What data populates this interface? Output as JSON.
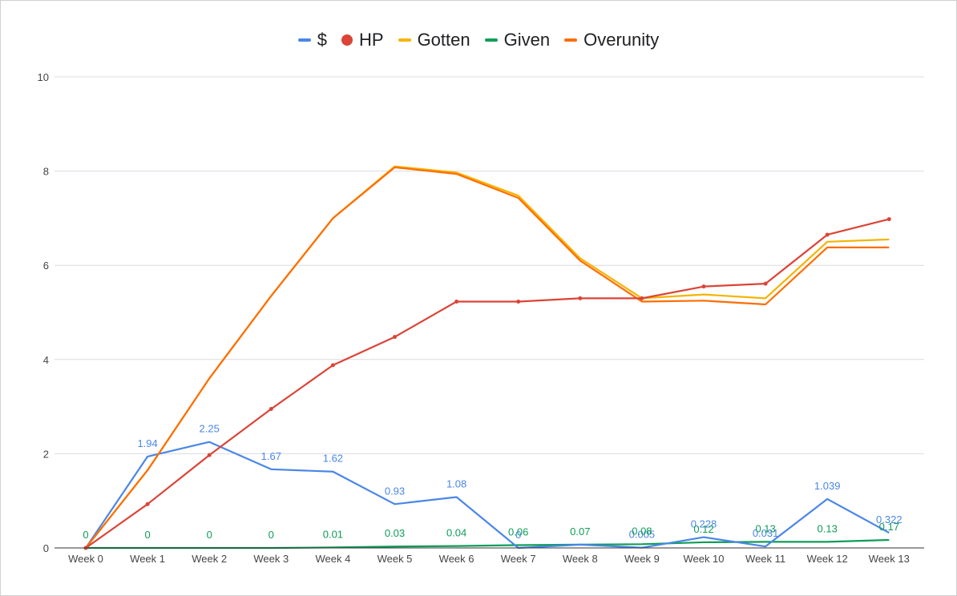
{
  "chart_data": {
    "type": "line",
    "categories": [
      "Week 0",
      "Week 1",
      "Week 2",
      "Week 3",
      "Week 4",
      "Week 5",
      "Week 6",
      "Week 7",
      "Week 8",
      "Week 9",
      "Week 10",
      "Week 11",
      "Week 12",
      "Week 13"
    ],
    "ylim": [
      0,
      10
    ],
    "yticks": [
      "0",
      "2",
      "4",
      "6",
      "8",
      "10"
    ],
    "grid": true,
    "legend_position": "top",
    "series": [
      {
        "name": "$",
        "marker": "line",
        "color": "#4a86e8",
        "values": [
          0,
          1.94,
          2.25,
          1.67,
          1.62,
          0.93,
          1.08,
          0.0,
          0.07,
          0.005,
          0.228,
          0.031,
          1.039,
          0.322
        ],
        "labels": [
          "",
          "1.94",
          "2.25",
          "1.67",
          "1.62",
          "0.93",
          "1.08",
          "0",
          "",
          "0.005",
          "0.228",
          "0.031",
          "1.039",
          "0.322"
        ]
      },
      {
        "name": "HP",
        "marker": "dot",
        "color": "#db4437",
        "values": [
          0,
          0.93,
          1.97,
          2.95,
          3.88,
          4.48,
          5.23,
          5.23,
          5.3,
          5.3,
          5.55,
          5.61,
          6.65,
          6.98
        ]
      },
      {
        "name": "Gotten",
        "marker": "line",
        "color": "#f4b400",
        "values": [
          0,
          1.65,
          3.6,
          5.35,
          7.0,
          8.1,
          7.97,
          7.48,
          6.15,
          5.3,
          5.38,
          5.3,
          6.5,
          6.55
        ]
      },
      {
        "name": "Given",
        "marker": "line",
        "color": "#0f9d58",
        "values": [
          0,
          0,
          0,
          0,
          0.01,
          0.03,
          0.04,
          0.06,
          0.07,
          0.08,
          0.12,
          0.13,
          0.13,
          0.17
        ],
        "labels": [
          "0",
          "0",
          "0",
          "0",
          "0.01",
          "0.03",
          "0.04",
          "0.06",
          "0.07",
          "0.08",
          "0.12",
          "0.13",
          "0.13",
          "0.17"
        ]
      },
      {
        "name": "Overunity",
        "marker": "line",
        "color": "#ff6d01",
        "values": [
          0,
          1.65,
          3.6,
          5.35,
          7.0,
          8.08,
          7.94,
          7.43,
          6.1,
          5.23,
          5.25,
          5.17,
          6.38,
          6.38
        ]
      }
    ]
  }
}
